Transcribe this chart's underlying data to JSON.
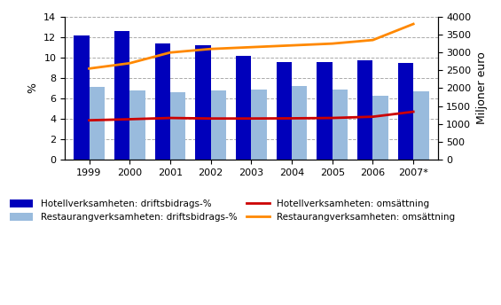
{
  "years": [
    1999,
    2000,
    2001,
    2002,
    2003,
    2004,
    2005,
    2006,
    2007
  ],
  "year_labels": [
    "1999",
    "2000",
    "2001",
    "2002",
    "2003",
    "2004",
    "2005",
    "2006",
    "2007*"
  ],
  "hotell_drifts": [
    12.2,
    12.6,
    11.4,
    11.2,
    10.2,
    9.6,
    9.6,
    9.7,
    9.5
  ],
  "restaurang_drifts": [
    7.1,
    6.8,
    6.6,
    6.8,
    6.9,
    7.2,
    6.9,
    6.3,
    6.7
  ],
  "hotell_omsattning": [
    1100,
    1130,
    1165,
    1150,
    1150,
    1155,
    1165,
    1200,
    1340
  ],
  "restaurang_omsattning": [
    2550,
    2700,
    3000,
    3100,
    3150,
    3200,
    3250,
    3350,
    3800
  ],
  "hotell_bar_color": "#0000BB",
  "restaurang_bar_color": "#99BBDD",
  "hotell_line_color": "#CC0000",
  "restaurang_line_color": "#FF8800",
  "ylim_left": [
    0,
    14
  ],
  "ylim_right": [
    0,
    4000
  ],
  "ylabel_left": "%",
  "ylabel_right": "Miljoner euro",
  "yticks_left": [
    0,
    2,
    4,
    6,
    8,
    10,
    12,
    14
  ],
  "yticks_right": [
    0,
    500,
    1000,
    1500,
    2000,
    2500,
    3000,
    3500,
    4000
  ],
  "legend_labels": [
    "Hotellverksamheten: driftsbidrags-%",
    "Restaurangverksamheten: driftsbidrags-%",
    "Hotellverksamheten: omsättning",
    "Restaurangverksamheten: omsättning"
  ],
  "background_color": "#ffffff",
  "grid_color": "#aaaaaa"
}
